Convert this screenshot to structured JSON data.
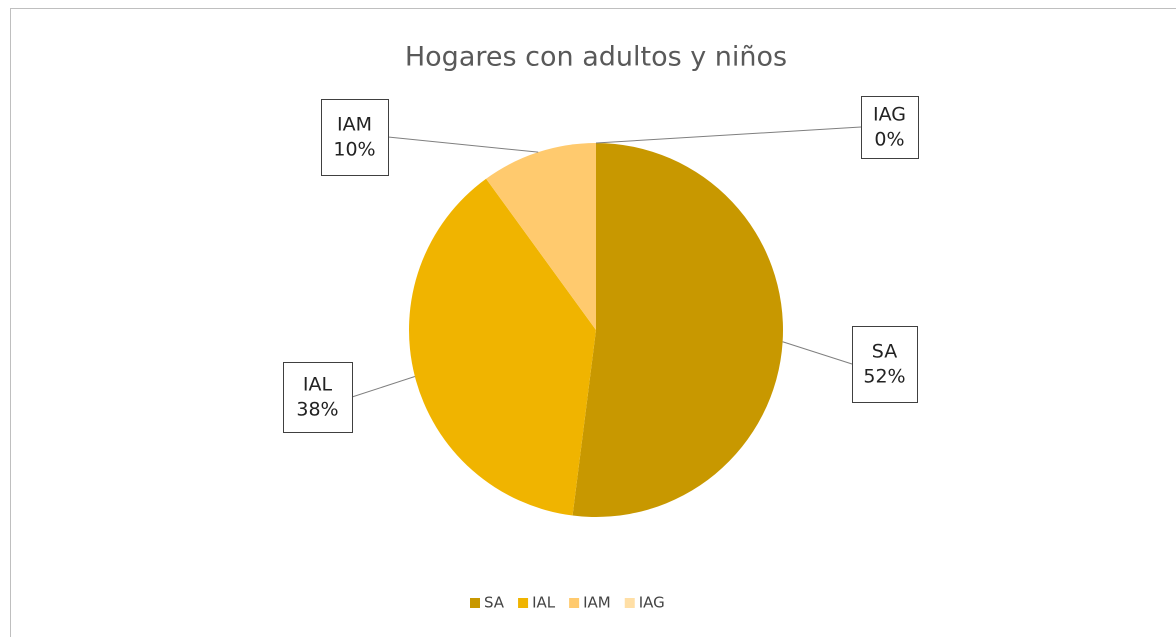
{
  "chart_data": {
    "type": "pie",
    "title": "Hogares con adultos y niños",
    "categories": [
      "SA",
      "IAL",
      "IAM",
      "IAG"
    ],
    "values": [
      52,
      38,
      10,
      0
    ],
    "value_labels": [
      "52%",
      "38%",
      "10%",
      "0%"
    ],
    "colors": [
      "#c89800",
      "#f0b400",
      "#ffca6e",
      "#ffdfa6"
    ],
    "legend": "bottom"
  }
}
